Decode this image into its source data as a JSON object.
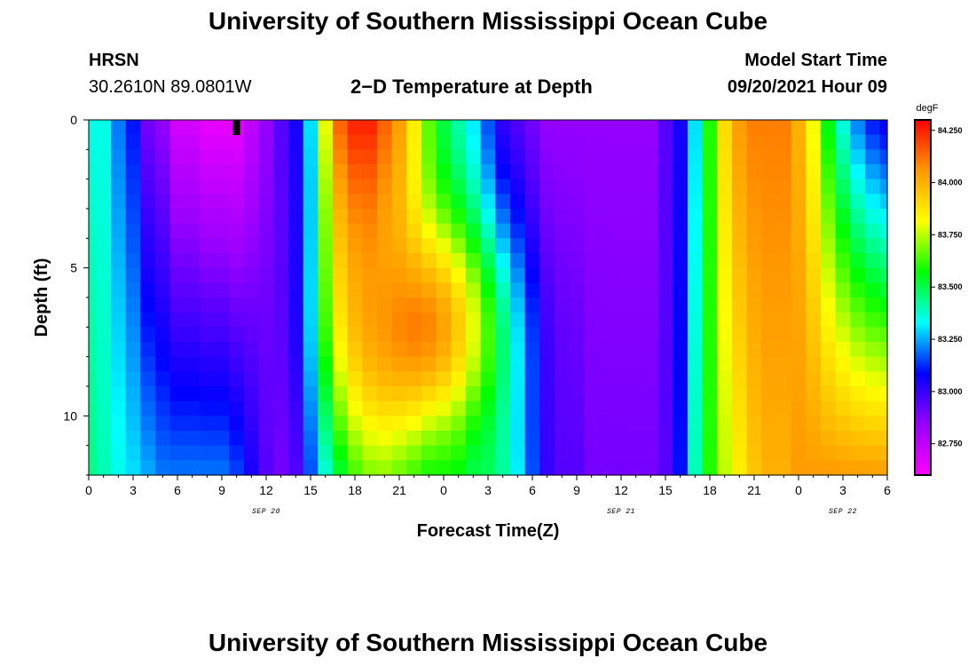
{
  "header": {
    "title": "University of Southern Mississippi Ocean Cube",
    "station": "HRSN",
    "coords": "30.2610N  89.0801W",
    "product": "2−D Temperature at Depth",
    "model_start_label": "Model Start Time",
    "model_start_value": "09/20/2021 Hour 09"
  },
  "footer": {
    "title": "University of Southern Mississippi Ocean Cube"
  },
  "chart_data": {
    "type": "heatmap",
    "title": "2−D Temperature at Depth",
    "xlabel": "Forecast Time(Z)",
    "ylabel": "Depth (ft)",
    "units": "degF",
    "x_range_hours": [
      0,
      54
    ],
    "ylim": [
      0,
      12
    ],
    "x_ticks": [
      "0",
      "3",
      "6",
      "9",
      "12",
      "15",
      "18",
      "21",
      "0",
      "3",
      "6",
      "9",
      "12",
      "15",
      "18",
      "21",
      "0",
      "3",
      "6"
    ],
    "y_ticks": [
      "0",
      "5",
      "10"
    ],
    "date_labels": [
      {
        "label": "SEP 20",
        "hour": 12
      },
      {
        "label": "SEP 21",
        "hour": 36
      },
      {
        "label": "SEP 22",
        "hour": 51
      }
    ],
    "current_time_marker_hour": 10,
    "colorbar": {
      "label": "degF",
      "min": 82.6,
      "max": 84.3,
      "tick_values": [
        "84.250",
        "84.000",
        "83.750",
        "83.500",
        "83.250",
        "83.000",
        "82.750"
      ],
      "colors": [
        "#ff00ff",
        "#9900ff",
        "#0000ff",
        "#00ffff",
        "#00ff00",
        "#ffff00",
        "#ff9900",
        "#ff0000"
      ]
    },
    "surface_temps_degF": [
      83.35,
      83.35,
      83.2,
      83.1,
      82.9,
      82.85,
      82.7,
      82.7,
      82.65,
      82.65,
      82.65,
      82.75,
      82.85,
      82.95,
      83.05,
      83.3,
      83.8,
      84.15,
      84.25,
      84.25,
      84.15,
      84.05,
      83.85,
      83.65,
      83.5,
      83.4,
      83.3,
      83.15,
      83.0,
      82.95,
      82.9,
      82.85,
      82.85,
      82.85,
      82.85,
      82.85,
      82.85,
      82.85,
      82.85,
      82.95,
      83.05,
      83.3,
      83.6,
      83.9,
      84.05,
      84.1,
      84.1,
      84.1,
      84.0,
      83.8,
      83.55,
      83.35,
      83.2,
      83.1,
      83.05
    ],
    "bottom_temps_degF": [
      83.45,
      83.4,
      83.35,
      83.3,
      83.25,
      83.2,
      83.2,
      83.2,
      83.2,
      83.2,
      83.15,
      83.05,
      82.95,
      82.9,
      82.95,
      83.15,
      83.35,
      83.5,
      83.6,
      83.65,
      83.65,
      83.6,
      83.55,
      83.5,
      83.5,
      83.5,
      83.45,
      83.45,
      83.4,
      83.3,
      83.15,
      83.0,
      82.95,
      82.95,
      82.9,
      82.9,
      82.9,
      82.9,
      82.9,
      82.95,
      83.1,
      83.4,
      83.6,
      83.75,
      83.85,
      83.95,
      84.0,
      84.0,
      84.05,
      84.05,
      84.05,
      84.05,
      84.05,
      84.05,
      84.05
    ],
    "warm_core": {
      "peak_hour": 22.5,
      "peak_depth_ft": 7,
      "peak_degF": 84.15,
      "curvature": 0.9
    }
  }
}
